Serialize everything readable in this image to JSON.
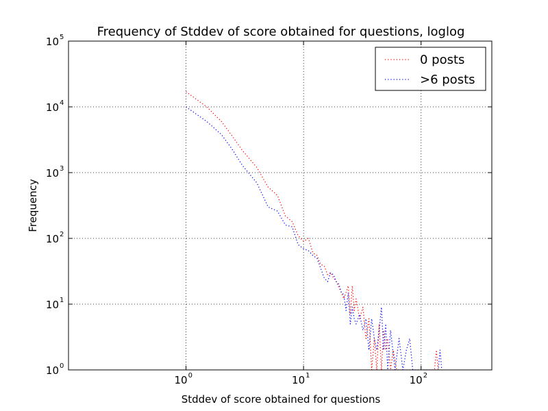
{
  "chart_data": {
    "type": "line",
    "title": "Frequency of Stddev of score obtained for questions, loglog",
    "xlabel": "Stddev of score obtained for questions",
    "ylabel": "Frequency",
    "x_scale": "log",
    "y_scale": "log",
    "xlim": [
      0.1,
      400
    ],
    "ylim": [
      1,
      100000
    ],
    "grid": true,
    "line_style": "dotted",
    "legend_position": "top-right",
    "x_ticks": [
      {
        "value": 1,
        "base": "10",
        "exp": "0"
      },
      {
        "value": 10,
        "base": "10",
        "exp": "1"
      },
      {
        "value": 100,
        "base": "10",
        "exp": "2"
      }
    ],
    "y_ticks": [
      {
        "value": 1,
        "base": "10",
        "exp": "0"
      },
      {
        "value": 10,
        "base": "10",
        "exp": "1"
      },
      {
        "value": 100,
        "base": "10",
        "exp": "2"
      },
      {
        "value": 1000,
        "base": "10",
        "exp": "3"
      },
      {
        "value": 10000,
        "base": "10",
        "exp": "4"
      },
      {
        "value": 100000,
        "base": "10",
        "exp": "5"
      }
    ],
    "series": [
      {
        "name": "0 posts",
        "color": "#ff0000",
        "points": [
          [
            1.0,
            17000
          ],
          [
            1.5,
            10000
          ],
          [
            2.0,
            6000
          ],
          [
            2.5,
            3500
          ],
          [
            3.0,
            2200
          ],
          [
            4.0,
            1200
          ],
          [
            5.0,
            600
          ],
          [
            6.0,
            450
          ],
          [
            7.0,
            220
          ],
          [
            8.0,
            180
          ],
          [
            9.0,
            110
          ],
          [
            10.0,
            90
          ],
          [
            11.0,
            100
          ],
          [
            12.0,
            60
          ],
          [
            13.0,
            55
          ],
          [
            14.0,
            40
          ],
          [
            15.0,
            38
          ],
          [
            16.0,
            28
          ],
          [
            17.0,
            30
          ],
          [
            18.0,
            25
          ],
          [
            19.0,
            22
          ],
          [
            20.0,
            18
          ],
          [
            21.0,
            15
          ],
          [
            22.0,
            12
          ],
          [
            23.0,
            15
          ],
          [
            24.0,
            19
          ],
          [
            25.0,
            7
          ],
          [
            26.0,
            19
          ],
          [
            27.0,
            8
          ],
          [
            28.0,
            12
          ],
          [
            30.0,
            6
          ],
          [
            32.0,
            9
          ],
          [
            34.0,
            3
          ],
          [
            36.0,
            6
          ],
          [
            38.0,
            1
          ],
          [
            40.0,
            3
          ],
          [
            42.0,
            1
          ],
          [
            44.0,
            5
          ],
          [
            46.0,
            1
          ],
          [
            48.0,
            4
          ],
          [
            50.0,
            2
          ],
          [
            52.0,
            3
          ],
          [
            55.0,
            1
          ],
          [
            58.0,
            2
          ],
          [
            62.0,
            1
          ],
          [
            70.0,
            1
          ],
          [
            130.0,
            1
          ],
          [
            135.0,
            2
          ],
          [
            140.0,
            1
          ],
          [
            145.0,
            1
          ]
        ]
      },
      {
        "name": ">6 posts",
        "color": "#0000ff",
        "points": [
          [
            1.0,
            10000
          ],
          [
            1.5,
            6000
          ],
          [
            2.0,
            3800
          ],
          [
            2.5,
            2200
          ],
          [
            3.0,
            1300
          ],
          [
            4.0,
            700
          ],
          [
            5.0,
            300
          ],
          [
            6.0,
            260
          ],
          [
            7.0,
            160
          ],
          [
            8.0,
            150
          ],
          [
            9.0,
            80
          ],
          [
            10.0,
            70
          ],
          [
            11.0,
            65
          ],
          [
            12.0,
            55
          ],
          [
            13.0,
            50
          ],
          [
            14.0,
            35
          ],
          [
            15.0,
            25
          ],
          [
            16.0,
            22
          ],
          [
            17.0,
            30
          ],
          [
            18.0,
            28
          ],
          [
            19.0,
            22
          ],
          [
            20.0,
            20
          ],
          [
            21.0,
            15
          ],
          [
            22.0,
            14
          ],
          [
            23.0,
            8
          ],
          [
            24.0,
            15
          ],
          [
            25.0,
            5
          ],
          [
            26.0,
            9
          ],
          [
            27.0,
            6
          ],
          [
            28.0,
            5
          ],
          [
            30.0,
            7
          ],
          [
            32.0,
            4
          ],
          [
            34.0,
            6
          ],
          [
            36.0,
            2
          ],
          [
            38.0,
            6
          ],
          [
            40.0,
            3
          ],
          [
            42.0,
            2
          ],
          [
            44.0,
            4
          ],
          [
            46.0,
            9
          ],
          [
            48.0,
            2
          ],
          [
            50.0,
            5
          ],
          [
            52.0,
            1
          ],
          [
            55.0,
            4
          ],
          [
            60.0,
            1
          ],
          [
            65.0,
            3
          ],
          [
            70.0,
            1
          ],
          [
            75.0,
            2
          ],
          [
            80.0,
            3
          ],
          [
            85.0,
            1
          ],
          [
            130.0,
            1
          ],
          [
            140.0,
            1
          ],
          [
            145.0,
            2
          ],
          [
            150.0,
            1
          ]
        ]
      }
    ]
  }
}
